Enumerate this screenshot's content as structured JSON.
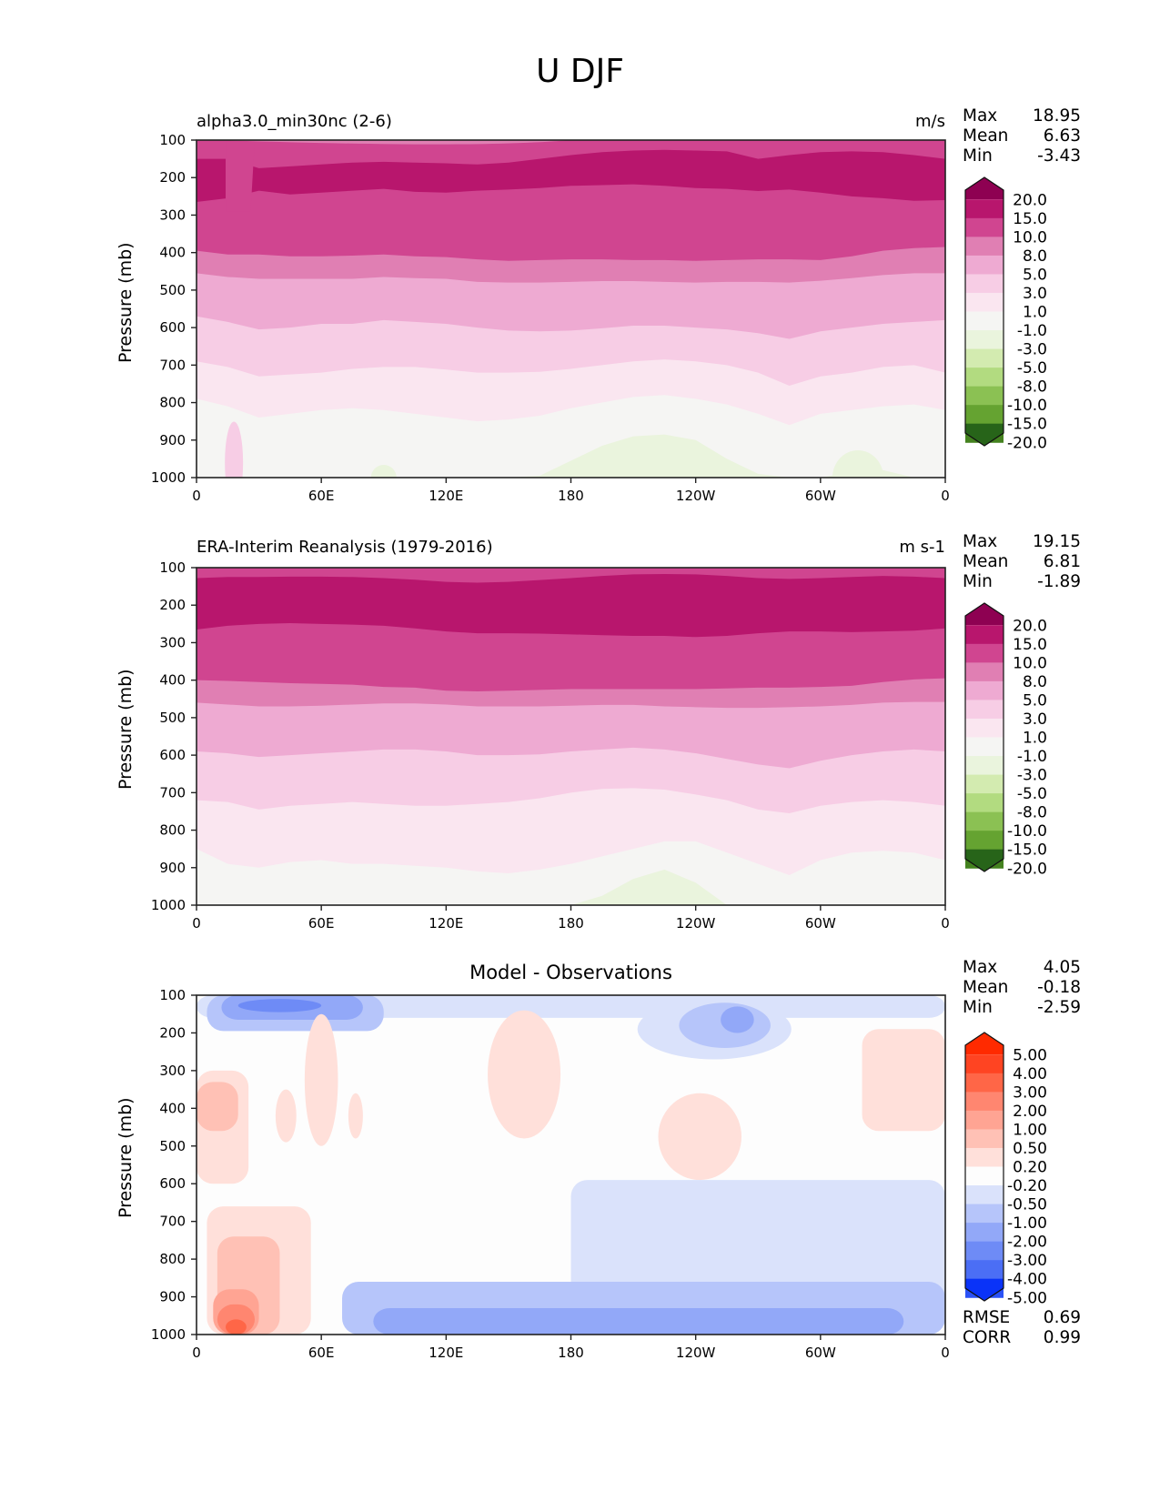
{
  "figure": {
    "title": "U DJF"
  },
  "chart_data": [
    {
      "type": "heatmap",
      "subtype": "filled-contour",
      "panel": "model",
      "title_left": "alpha3.0_min30nc (2-6)",
      "title_right": "m/s",
      "ylabel": "Pressure (mb)",
      "xlabel": "",
      "x_ticks": [
        "0",
        "60E",
        "120E",
        "180",
        "120W",
        "60W",
        "0"
      ],
      "x_tick_values": [
        0,
        60,
        120,
        180,
        240,
        300,
        360
      ],
      "xlim": [
        0,
        360
      ],
      "y_ticks": [
        "100",
        "200",
        "300",
        "400",
        "500",
        "600",
        "700",
        "800",
        "900",
        "1000"
      ],
      "y_tick_values": [
        100,
        200,
        300,
        400,
        500,
        600,
        700,
        800,
        900,
        1000
      ],
      "ylim": [
        1000,
        100
      ],
      "stats": {
        "Max": "18.95",
        "Mean": "6.63",
        "Min": "-3.43"
      },
      "colorbar": {
        "levels": [
          "20.0",
          "15.0",
          "10.0",
          "8.0",
          "5.0",
          "3.0",
          "1.0",
          "-1.0",
          "-3.0",
          "-5.0",
          "-8.0",
          "-10.0",
          "-15.0",
          "-20.0"
        ],
        "colors": [
          "#8e0152",
          "#b8166d",
          "#d04590",
          "#e07fb3",
          "#eeaad2",
          "#f7cde5",
          "#fae6f0",
          "#f5f5f3",
          "#eaf4dd",
          "#d3ebb0",
          "#b2db80",
          "#8bc153",
          "#65a331",
          "#44821f",
          "#276419"
        ],
        "extend": "both"
      },
      "lon": [
        0,
        15,
        30,
        45,
        60,
        75,
        90,
        105,
        120,
        135,
        150,
        165,
        180,
        195,
        210,
        225,
        240,
        255,
        270,
        285,
        300,
        315,
        330,
        345,
        360
      ],
      "band_boundaries_hPa": {
        "15": [
          265,
          255,
          235,
          245,
          240,
          235,
          230,
          238,
          240,
          235,
          232,
          228,
          222,
          220,
          218,
          222,
          228,
          230,
          236,
          232,
          240,
          250,
          255,
          262,
          260
        ],
        "10": [
          395,
          405,
          405,
          410,
          410,
          408,
          405,
          410,
          412,
          418,
          422,
          420,
          418,
          418,
          420,
          420,
          422,
          420,
          418,
          418,
          420,
          410,
          395,
          388,
          385
        ],
        "8": [
          455,
          465,
          470,
          470,
          470,
          470,
          465,
          468,
          470,
          478,
          480,
          480,
          478,
          476,
          476,
          478,
          480,
          478,
          478,
          480,
          475,
          468,
          460,
          455,
          455
        ],
        "5": [
          570,
          585,
          605,
          600,
          590,
          590,
          580,
          585,
          590,
          600,
          608,
          610,
          608,
          602,
          595,
          595,
          600,
          605,
          615,
          630,
          610,
          600,
          590,
          585,
          580
        ],
        "3": [
          690,
          705,
          730,
          725,
          720,
          710,
          705,
          705,
          712,
          720,
          720,
          718,
          710,
          700,
          690,
          685,
          690,
          700,
          720,
          755,
          730,
          720,
          705,
          700,
          720
        ],
        "1": [
          790,
          810,
          840,
          830,
          820,
          815,
          820,
          830,
          840,
          850,
          845,
          835,
          815,
          800,
          785,
          780,
          790,
          805,
          830,
          860,
          830,
          820,
          810,
          805,
          820
        ],
        "-1": [
          1000,
          1000,
          1000,
          1000,
          1000,
          1000,
          1000,
          1000,
          1000,
          1000,
          1000,
          995,
          955,
          915,
          890,
          885,
          900,
          950,
          990,
          1000,
          1000,
          985,
          980,
          1000,
          1000
        ]
      },
      "minor_features": [
        {
          "value_band": "3..5",
          "note": "low-level pink lobe near 15E, 880-1000 hPa"
        },
        {
          "value_band": "-1..-3",
          "note": "light green patches near 90E and 170E-250E, 60W-20W near surface"
        }
      ]
    },
    {
      "type": "heatmap",
      "subtype": "filled-contour",
      "panel": "observations",
      "title_left": "ERA-Interim Reanalysis (1979-2016)",
      "title_right": "m s-1",
      "ylabel": "Pressure (mb)",
      "xlabel": "",
      "x_ticks": [
        "0",
        "60E",
        "120E",
        "180",
        "120W",
        "60W",
        "0"
      ],
      "x_tick_values": [
        0,
        60,
        120,
        180,
        240,
        300,
        360
      ],
      "xlim": [
        0,
        360
      ],
      "y_ticks": [
        "100",
        "200",
        "300",
        "400",
        "500",
        "600",
        "700",
        "800",
        "900",
        "1000"
      ],
      "y_tick_values": [
        100,
        200,
        300,
        400,
        500,
        600,
        700,
        800,
        900,
        1000
      ],
      "ylim": [
        1000,
        100
      ],
      "stats": {
        "Max": "19.15",
        "Mean": "6.81",
        "Min": "-1.89"
      },
      "colorbar": {
        "levels": [
          "20.0",
          "15.0",
          "10.0",
          "8.0",
          "5.0",
          "3.0",
          "1.0",
          "-1.0",
          "-3.0",
          "-5.0",
          "-8.0",
          "-10.0",
          "-15.0",
          "-20.0"
        ],
        "colors": [
          "#8e0152",
          "#b8166d",
          "#d04590",
          "#e07fb3",
          "#eeaad2",
          "#f7cde5",
          "#fae6f0",
          "#f5f5f3",
          "#eaf4dd",
          "#d3ebb0",
          "#b2db80",
          "#8bc153",
          "#65a331",
          "#44821f",
          "#276419"
        ],
        "extend": "both"
      },
      "lon": [
        0,
        15,
        30,
        45,
        60,
        75,
        90,
        105,
        120,
        135,
        150,
        165,
        180,
        195,
        210,
        225,
        240,
        255,
        270,
        285,
        300,
        315,
        330,
        345,
        360
      ],
      "band_boundaries_hPa": {
        "upper10": [
          100,
          100,
          100,
          100,
          100,
          100,
          100,
          100,
          100,
          100,
          102,
          104,
          104,
          102,
          100,
          100,
          100,
          100,
          100,
          100,
          100,
          100,
          100,
          100,
          100
        ],
        "15_top": [
          128,
          125,
          125,
          124,
          124,
          125,
          128,
          132,
          138,
          140,
          138,
          133,
          128,
          122,
          118,
          117,
          118,
          122,
          128,
          130,
          128,
          125,
          122,
          124,
          128
        ],
        "15": [
          265,
          255,
          250,
          248,
          250,
          252,
          255,
          262,
          270,
          275,
          275,
          276,
          278,
          280,
          282,
          282,
          285,
          282,
          275,
          270,
          270,
          272,
          270,
          268,
          262
        ],
        "10": [
          400,
          402,
          405,
          408,
          410,
          412,
          418,
          420,
          428,
          430,
          428,
          426,
          424,
          424,
          424,
          424,
          424,
          422,
          420,
          420,
          418,
          415,
          405,
          398,
          395
        ],
        "8": [
          460,
          465,
          470,
          470,
          468,
          465,
          462,
          462,
          465,
          470,
          470,
          470,
          468,
          466,
          466,
          470,
          472,
          474,
          474,
          472,
          470,
          466,
          460,
          458,
          458
        ],
        "5": [
          590,
          595,
          605,
          600,
          595,
          590,
          585,
          585,
          590,
          600,
          600,
          598,
          590,
          585,
          580,
          585,
          595,
          610,
          625,
          635,
          615,
          600,
          590,
          585,
          590
        ],
        "3": [
          720,
          725,
          745,
          735,
          730,
          725,
          730,
          735,
          735,
          730,
          725,
          715,
          700,
          690,
          688,
          692,
          705,
          720,
          745,
          755,
          735,
          725,
          720,
          725,
          735
        ],
        "1": [
          850,
          890,
          900,
          885,
          880,
          890,
          890,
          895,
          900,
          910,
          915,
          905,
          890,
          870,
          850,
          830,
          830,
          860,
          890,
          920,
          880,
          860,
          855,
          860,
          880
        ],
        "-1": [
          1000,
          1000,
          1000,
          1000,
          1000,
          1000,
          1000,
          1000,
          1000,
          1000,
          1000,
          1000,
          1000,
          975,
          930,
          905,
          940,
          1000,
          1000,
          1000,
          1000,
          1000,
          1000,
          1000,
          1000
        ]
      }
    },
    {
      "type": "heatmap",
      "subtype": "filled-contour",
      "panel": "difference",
      "title_center": "Model - Observations",
      "ylabel": "Pressure (mb)",
      "xlabel": "",
      "x_ticks": [
        "0",
        "60E",
        "120E",
        "180",
        "120W",
        "60W",
        "0"
      ],
      "x_tick_values": [
        0,
        60,
        120,
        180,
        240,
        300,
        360
      ],
      "xlim": [
        0,
        360
      ],
      "y_ticks": [
        "100",
        "200",
        "300",
        "400",
        "500",
        "600",
        "700",
        "800",
        "900",
        "1000"
      ],
      "y_tick_values": [
        100,
        200,
        300,
        400,
        500,
        600,
        700,
        800,
        900,
        1000
      ],
      "ylim": [
        1000,
        100
      ],
      "stats": {
        "Max": "4.05",
        "Mean": "-0.18",
        "Min": "-2.59"
      },
      "metrics": {
        "RMSE": "0.69",
        "CORR": "0.99"
      },
      "colorbar": {
        "levels": [
          "5.00",
          "4.00",
          "3.00",
          "2.00",
          "1.00",
          "0.50",
          "0.20",
          "-0.20",
          "-0.50",
          "-1.00",
          "-2.00",
          "-3.00",
          "-4.00",
          "-5.00"
        ],
        "colors": [
          "#ff2a00",
          "#ff4422",
          "#ff6647",
          "#ff8670",
          "#ffa493",
          "#ffc1b5",
          "#ffe0da",
          "#fdfdfd",
          "#dae2fb",
          "#b6c5fa",
          "#92a8f8",
          "#6e8bf6",
          "#4b6ef5",
          "#2b52f6",
          "#0a33f8"
        ],
        "extend": "both"
      },
      "regions": [
        {
          "value_band": "-0.2..-0.5",
          "lon": [
            0,
            360
          ],
          "p": [
            100,
            160
          ]
        },
        {
          "value_band": "-0.5..-1",
          "lon": [
            5,
            90
          ],
          "p": [
            100,
            195
          ]
        },
        {
          "value_band": "-1..-2",
          "lon": [
            12,
            80
          ],
          "p": [
            100,
            165
          ]
        },
        {
          "value_band": "-2..-3",
          "lon": [
            20,
            60
          ],
          "p": [
            110,
            145
          ]
        },
        {
          "value_band": "-0.2..-0.5",
          "lon": [
            212,
            286
          ],
          "p": [
            110,
            270
          ]
        },
        {
          "value_band": "-0.5..-1",
          "lon": [
            232,
            276
          ],
          "p": [
            120,
            240
          ]
        },
        {
          "value_band": "-1..-2",
          "lon": [
            252,
            268
          ],
          "p": [
            130,
            200
          ]
        },
        {
          "value_band": "0.2..0.5",
          "lon": [
            0,
            25
          ],
          "p": [
            300,
            600
          ]
        },
        {
          "value_band": "0.5..1",
          "lon": [
            0,
            20
          ],
          "p": [
            330,
            460
          ]
        },
        {
          "value_band": "0.2..0.5",
          "lon": [
            38,
            48
          ],
          "p": [
            350,
            490
          ]
        },
        {
          "value_band": "0.2..0.5",
          "lon": [
            52,
            68
          ],
          "p": [
            150,
            500
          ]
        },
        {
          "value_band": "0.2..0.5",
          "lon": [
            73,
            80
          ],
          "p": [
            360,
            480
          ]
        },
        {
          "value_band": "0.2..0.5",
          "lon": [
            140,
            175
          ],
          "p": [
            140,
            480
          ]
        },
        {
          "value_band": "0.2..0.5",
          "lon": [
            222,
            262
          ],
          "p": [
            360,
            590
          ]
        },
        {
          "value_band": "0.2..0.5",
          "lon": [
            320,
            360
          ],
          "p": [
            190,
            460
          ]
        },
        {
          "value_band": "-0.2..-0.5",
          "lon": [
            180,
            360
          ],
          "p": [
            590,
            1000
          ]
        },
        {
          "value_band": "-0.5..-1",
          "lon": [
            70,
            360
          ],
          "p": [
            860,
            1000
          ]
        },
        {
          "value_band": "-1..-2",
          "lon": [
            85,
            340
          ],
          "p": [
            930,
            1000
          ]
        },
        {
          "value_band": "0.2..0.5",
          "lon": [
            5,
            55
          ],
          "p": [
            660,
            1000
          ]
        },
        {
          "value_band": "0.5..1",
          "lon": [
            10,
            40
          ],
          "p": [
            740,
            1000
          ]
        },
        {
          "value_band": "1..2",
          "lon": [
            8,
            30
          ],
          "p": [
            880,
            1000
          ]
        },
        {
          "value_band": "2..3",
          "lon": [
            10,
            28
          ],
          "p": [
            920,
            1000
          ]
        },
        {
          "value_band": "3..4",
          "lon": [
            14,
            24
          ],
          "p": [
            960,
            1000
          ]
        }
      ]
    }
  ]
}
